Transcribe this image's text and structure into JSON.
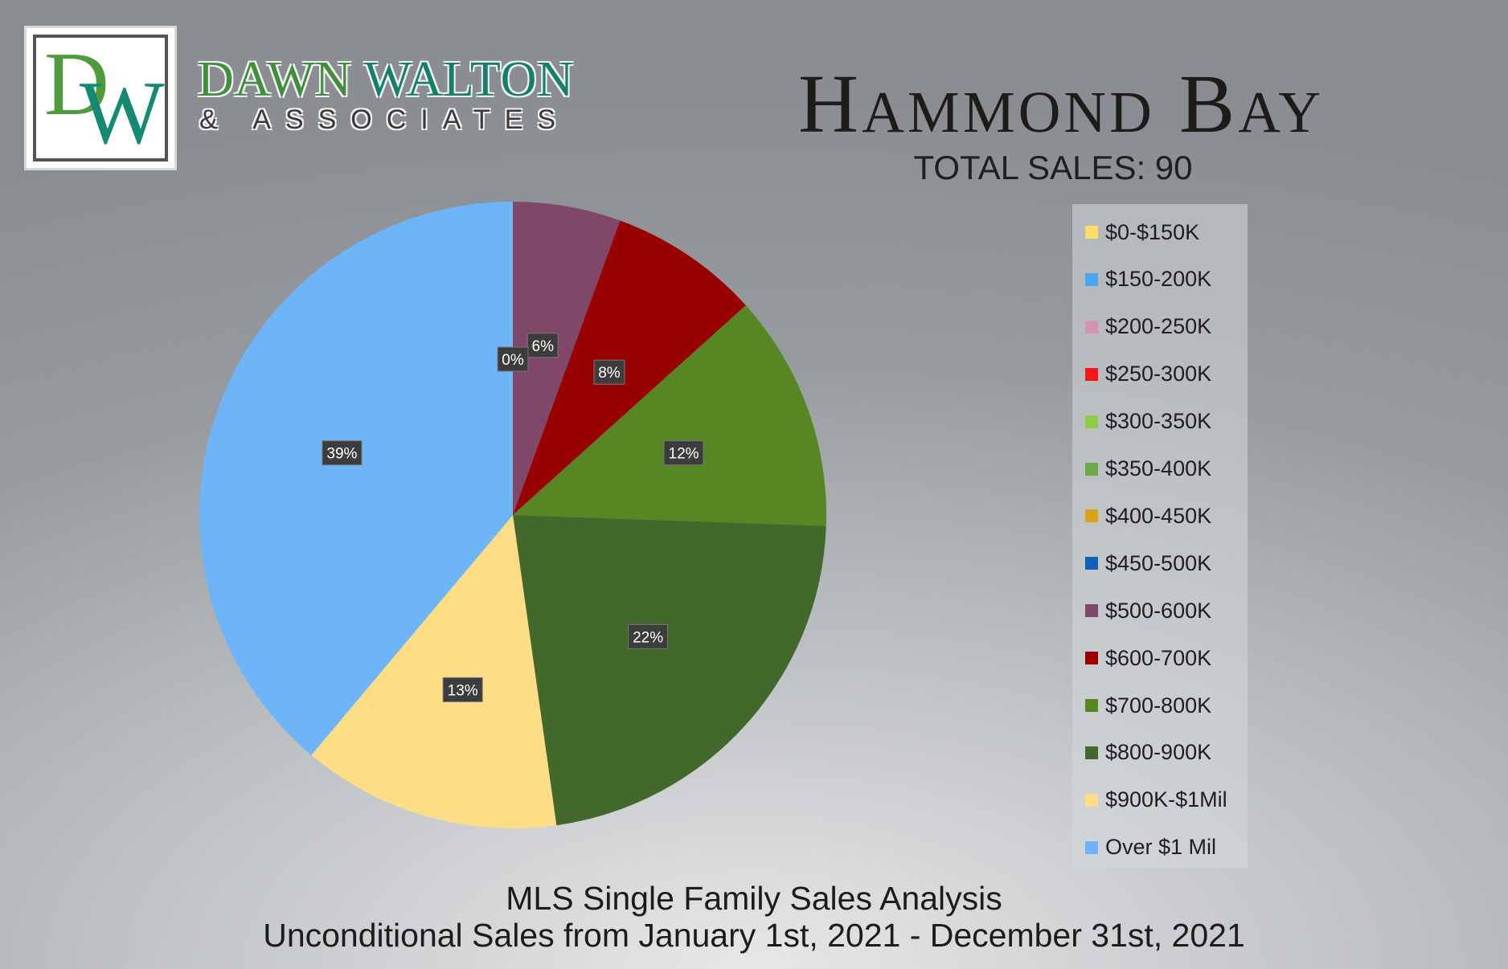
{
  "brand": {
    "initial_d": "D",
    "initial_w": "W",
    "name_part1": "DAWN",
    "name_part2": "WALTON",
    "subtitle": "& ASSOCIATES"
  },
  "header": {
    "title": "Hammond Bay",
    "total_sales": "TOTAL SALES: 90"
  },
  "footer": {
    "line1": "MLS Single Family Sales Analysis",
    "line2": "Unconditional Sales from January 1st, 2021 - December 31st, 2021"
  },
  "chart_data": {
    "type": "pie",
    "title": "",
    "legend_position": "right",
    "categories": [
      "$0-$150K",
      "$150-200K",
      "$200-250K",
      "$250-300K",
      "$300-350K",
      "$350-400K",
      "$400-450K",
      "$450-500K",
      "$500-600K",
      "$600-700K",
      "$700-800K",
      "$800-900K",
      "$900K-$1Mil",
      "Over $1 Mil"
    ],
    "colors": [
      "#fede6a",
      "#4ea6ee",
      "#d593b3",
      "#f2171d",
      "#8ccd4d",
      "#6ca94a",
      "#d9a31b",
      "#0f63b6",
      "#804768",
      "#990000",
      "#568723",
      "#43682b",
      "#fdde86",
      "#6db5f8"
    ],
    "values": [
      0,
      0,
      0,
      0,
      0,
      0,
      0,
      0,
      5,
      7,
      11,
      20,
      12,
      35
    ],
    "labels": [
      "",
      "",
      "",
      "",
      "",
      "",
      "",
      "",
      "6%",
      "8%",
      "12%",
      "22%",
      "13%",
      "39%"
    ],
    "zero_label": "0%"
  }
}
